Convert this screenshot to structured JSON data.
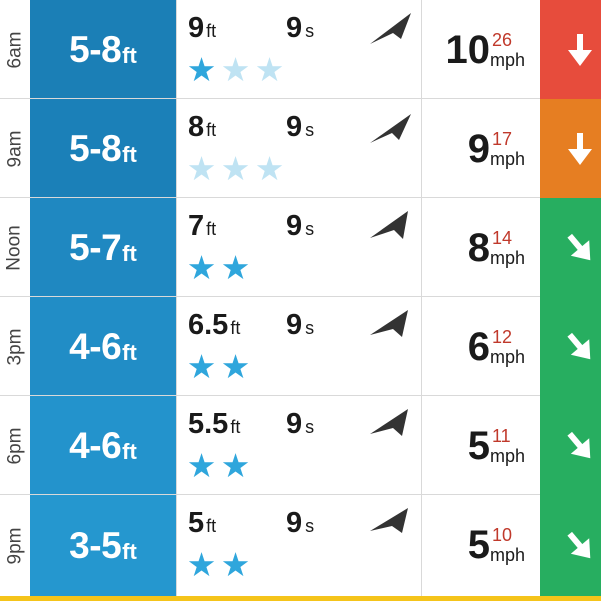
{
  "colors": {
    "surf_blue_dark": "#1b7fb6",
    "surf_blue_light": "#2597cf",
    "star_on": "#2fa6dc",
    "star_off": "#bfe3f3",
    "gust_red": "#c0392b",
    "wind_red": "#e74c3c",
    "wind_orange": "#e67e22",
    "wind_green": "#27ae60",
    "bottom_bar_yellow": "#f5c41a"
  },
  "rows": [
    {
      "time": "6am",
      "surf": "5-8",
      "surf_unit": "ft",
      "swell_height": "9",
      "swell_height_unit": "ft",
      "swell_period": "9",
      "swell_period_unit": "s",
      "stars_total": 3,
      "stars_on": 1,
      "stars_faded": 2,
      "swell_dir_icon": "swell-arrow-icon",
      "wind_speed": "10",
      "wind_gust": "26",
      "wind_unit": "mph",
      "wind_color": "#e74c3c",
      "wind_arrow": "down"
    },
    {
      "time": "9am",
      "surf": "5-8",
      "surf_unit": "ft",
      "swell_height": "8",
      "swell_height_unit": "ft",
      "swell_period": "9",
      "swell_period_unit": "s",
      "stars_total": 3,
      "stars_on": 0,
      "stars_faded": 3,
      "swell_dir_icon": "swell-arrow-icon",
      "wind_speed": "9",
      "wind_gust": "17",
      "wind_unit": "mph",
      "wind_color": "#e67e22",
      "wind_arrow": "down"
    },
    {
      "time": "Noon",
      "surf": "5-7",
      "surf_unit": "ft",
      "swell_height": "7",
      "swell_height_unit": "ft",
      "swell_period": "9",
      "swell_period_unit": "s",
      "stars_total": 2,
      "stars_on": 2,
      "stars_faded": 0,
      "swell_dir_icon": "swell-arrow-icon",
      "wind_speed": "8",
      "wind_gust": "14",
      "wind_unit": "mph",
      "wind_color": "#27ae60",
      "wind_arrow": "down-right"
    },
    {
      "time": "3pm",
      "surf": "4-6",
      "surf_unit": "ft",
      "swell_height": "6.5",
      "swell_height_unit": "ft",
      "swell_period": "9",
      "swell_period_unit": "s",
      "stars_total": 2,
      "stars_on": 2,
      "stars_faded": 0,
      "swell_dir_icon": "swell-arrow-icon",
      "wind_speed": "6",
      "wind_gust": "12",
      "wind_unit": "mph",
      "wind_color": "#27ae60",
      "wind_arrow": "down-right"
    },
    {
      "time": "6pm",
      "surf": "4-6",
      "surf_unit": "ft",
      "swell_height": "5.5",
      "swell_height_unit": "ft",
      "swell_period": "9",
      "swell_period_unit": "s",
      "stars_total": 2,
      "stars_on": 2,
      "stars_faded": 0,
      "swell_dir_icon": "swell-arrow-icon",
      "wind_speed": "5",
      "wind_gust": "11",
      "wind_unit": "mph",
      "wind_color": "#27ae60",
      "wind_arrow": "down-right"
    },
    {
      "time": "9pm",
      "surf": "3-5",
      "surf_unit": "ft",
      "swell_height": "5",
      "swell_height_unit": "ft",
      "swell_period": "9",
      "swell_period_unit": "s",
      "stars_total": 2,
      "stars_on": 2,
      "stars_faded": 0,
      "swell_dir_icon": "swell-arrow-icon",
      "wind_speed": "5",
      "wind_gust": "10",
      "wind_unit": "mph",
      "wind_color": "#27ae60",
      "wind_arrow": "down-right"
    }
  ]
}
